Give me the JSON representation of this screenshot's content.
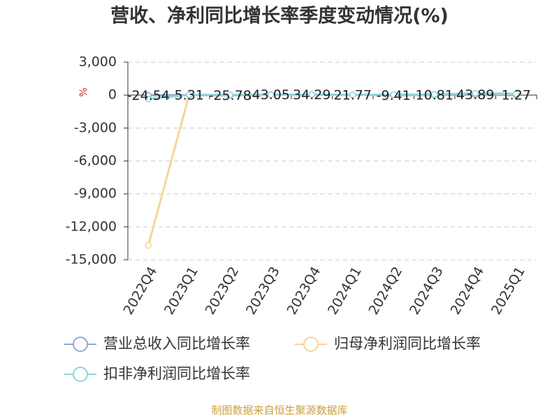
{
  "chart_data": {
    "type": "line",
    "title": "营收、净利同比增长率季度变动情况(%)",
    "y_label": "%",
    "source": "制图数据来自恒生聚源数据库",
    "categories": [
      "2022Q4",
      "2023Q1",
      "2023Q2",
      "2023Q3",
      "2023Q4",
      "2024Q1",
      "2024Q2",
      "2024Q3",
      "2024Q4",
      "2025Q1"
    ],
    "series": [
      {
        "name": "营业总收入同比增长率",
        "color": "#8ea9d8",
        "values": [
          -24.54,
          5.31,
          -25.78,
          43.05,
          34.29,
          21.77,
          -9.41,
          10.81,
          43.89,
          1.27
        ]
      },
      {
        "name": "归母净利润同比增长率",
        "color": "#f8d594",
        "values": [
          -13700,
          30,
          20,
          50,
          40,
          10,
          30,
          60,
          150,
          100
        ]
      },
      {
        "name": "扣非净利润同比增长率",
        "color": "#8dd5de",
        "values": [
          -350,
          20,
          10,
          30,
          50,
          20,
          40,
          60,
          170,
          120
        ]
      }
    ],
    "ylim": [
      -15000,
      3000
    ],
    "yticks": [
      {
        "value": -15000,
        "label": "-15,000"
      },
      {
        "value": -12000,
        "label": "-12,000"
      },
      {
        "value": -9000,
        "label": "-9,000"
      },
      {
        "value": -6000,
        "label": "-6,000"
      },
      {
        "value": -3000,
        "label": "-3,000"
      },
      0,
      {
        "value": 3000,
        "label": "3,000"
      }
    ],
    "grid": true
  }
}
